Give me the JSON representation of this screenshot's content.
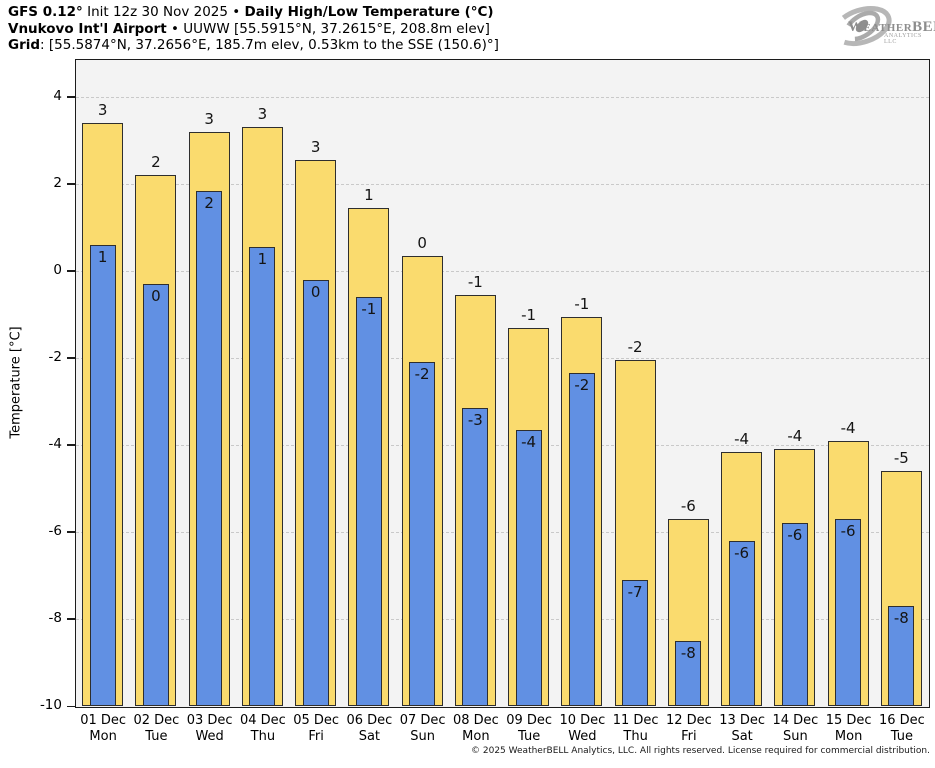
{
  "header": {
    "line1": [
      {
        "text": "GFS 0.12°",
        "bold": true
      },
      {
        "text": " Init 12z 30 Nov 2025 • ",
        "bold": false
      },
      {
        "text": "Daily High/Low Temperature (°C)",
        "bold": true
      }
    ],
    "line2": [
      {
        "text": "Vnukovo Int'l Airport",
        "bold": true
      },
      {
        "text": " • UUWW [55.5915°N, 37.2615°E, 208.8m elev]",
        "bold": false
      }
    ],
    "line3": [
      {
        "text": "Grid",
        "bold": true
      },
      {
        "text": ": [55.5874°N, 37.2656°E, 185.7m elev, 0.53km to the SSE (150.6)°]",
        "bold": false
      }
    ]
  },
  "logo": {
    "brand": "WeatherBELL",
    "sub": "ANALYTICS LLC"
  },
  "chart_data": {
    "type": "bar",
    "title": "GFS 0.12° Init 12z 30 Nov 2025 • Daily High/Low Temperature (°C)",
    "station": "Vnukovo Int'l Airport (UUWW)",
    "ylabel": "Temperature [°C]",
    "ylim": [
      -10,
      4.85
    ],
    "yticks": [
      4,
      2,
      0,
      -2,
      -4,
      -6,
      -8,
      -10
    ],
    "grid": true,
    "legend_position": "none",
    "categories": [
      "01 Dec",
      "02 Dec",
      "03 Dec",
      "04 Dec",
      "05 Dec",
      "06 Dec",
      "07 Dec",
      "08 Dec",
      "09 Dec",
      "10 Dec",
      "11 Dec",
      "12 Dec",
      "13 Dec",
      "14 Dec",
      "15 Dec",
      "16 Dec"
    ],
    "weekdays": [
      "Mon",
      "Tue",
      "Wed",
      "Thu",
      "Fri",
      "Sat",
      "Sun",
      "Mon",
      "Tue",
      "Wed",
      "Thu",
      "Fri",
      "Sat",
      "Sun",
      "Mon",
      "Tue"
    ],
    "series": [
      {
        "name": "Daily High",
        "color": "#fadb6e",
        "bar_values": [
          3.4,
          2.2,
          3.2,
          3.3,
          2.55,
          1.45,
          0.35,
          -0.55,
          -1.3,
          -1.05,
          -2.05,
          -5.7,
          -4.15,
          -4.1,
          -3.9,
          -4.6
        ],
        "labels": [
          "3",
          "2",
          "3",
          "3",
          "3",
          "1",
          "0",
          "-1",
          "-1",
          "-1",
          "-2",
          "-6",
          "-4",
          "-4",
          "-4",
          "-5"
        ]
      },
      {
        "name": "Daily Low",
        "color": "#6190e3",
        "bar_values": [
          0.6,
          -0.3,
          1.85,
          0.55,
          -0.2,
          -0.6,
          -2.1,
          -3.15,
          -3.65,
          -2.35,
          -7.1,
          -8.5,
          -6.2,
          -5.8,
          -5.7,
          -7.7
        ],
        "labels": [
          "1",
          "0",
          "2",
          "1",
          "0",
          "-1",
          "-2",
          "-3",
          "-4",
          "-2",
          "-7",
          "-8",
          "-6",
          "-6",
          "-6",
          "-8"
        ]
      }
    ],
    "bars_baseline": -10
  },
  "footer": {
    "copyright": "© 2025 WeatherBELL Analytics, LLC. All rights reserved. License required for commercial distribution."
  },
  "colors": {
    "high_bar": "#fadb6e",
    "low_bar": "#6190e3",
    "bar_border": "#2e2e2e",
    "plot_bg": "#f3f3f3",
    "gridline": "#c9c9c9",
    "axis": "#1c1c1c"
  }
}
